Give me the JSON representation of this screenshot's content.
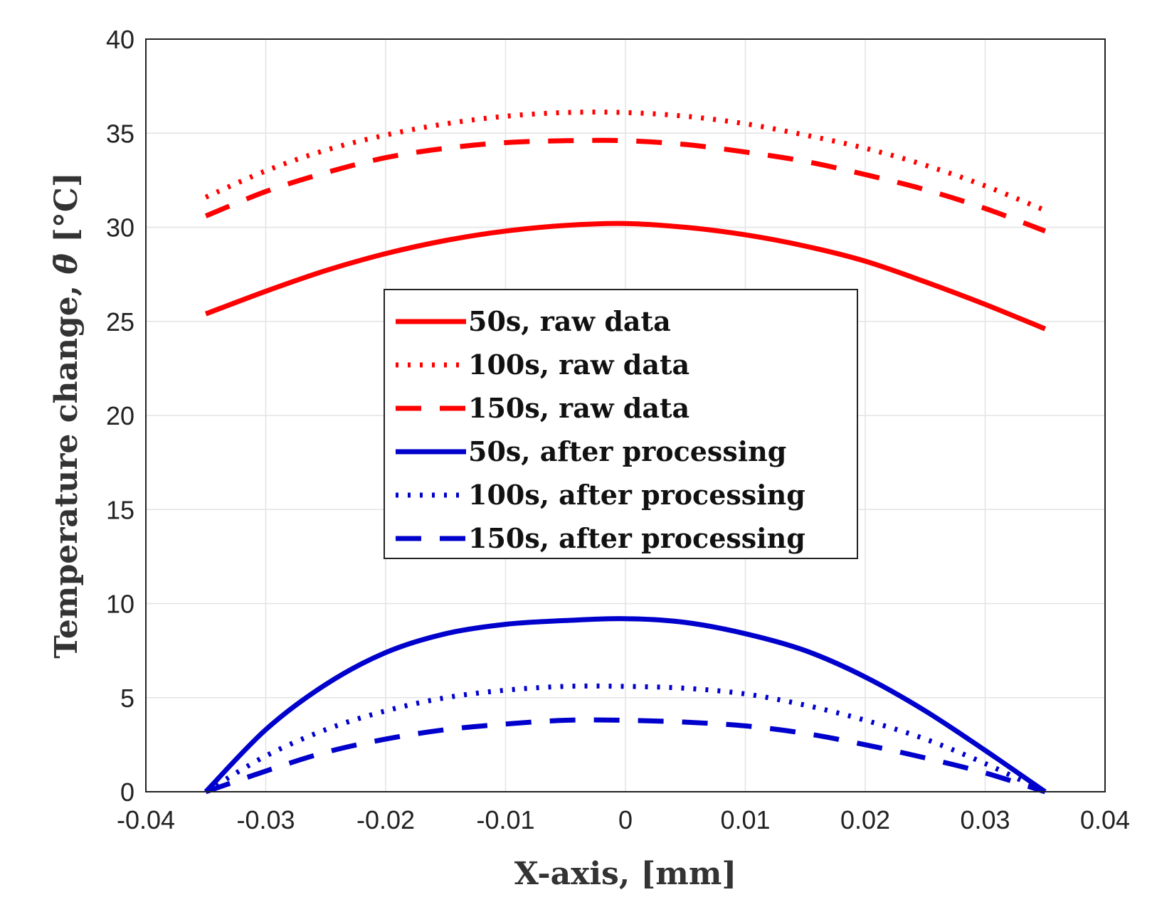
{
  "chart_data": {
    "type": "line",
    "title": "",
    "xlabel": "X-axis, [mm]",
    "ylabel_main": "Temperature change, ",
    "ylabel_symbol": "θ̄",
    "ylabel_unit": " [°C]",
    "xlim": [
      -0.04,
      0.04
    ],
    "ylim": [
      0,
      40
    ],
    "grid": true,
    "legend_position": "center",
    "x_ticks": [
      -0.04,
      -0.03,
      -0.02,
      -0.01,
      0,
      0.01,
      0.02,
      0.03,
      0.04
    ],
    "x_tick_labels": [
      "-0.04",
      "-0.03",
      "-0.02",
      "-0.01",
      "0",
      "0.01",
      "0.02",
      "0.03",
      "0.04"
    ],
    "y_ticks": [
      0,
      5,
      10,
      15,
      20,
      25,
      30,
      35,
      40
    ],
    "y_tick_labels": [
      "0",
      "5",
      "10",
      "15",
      "20",
      "25",
      "30",
      "35",
      "40"
    ],
    "x": [
      -0.035,
      -0.03,
      -0.025,
      -0.02,
      -0.015,
      -0.01,
      -0.005,
      0,
      0.005,
      0.01,
      0.015,
      0.02,
      0.025,
      0.03,
      0.035
    ],
    "series": [
      {
        "name": "50s, raw data",
        "color": "#ff0000",
        "style": "solid",
        "values": [
          25.4,
          26.6,
          27.7,
          28.6,
          29.3,
          29.8,
          30.1,
          30.2,
          30.0,
          29.6,
          29.0,
          28.2,
          27.1,
          25.9,
          24.6
        ]
      },
      {
        "name": "100s, raw data",
        "color": "#ff0000",
        "style": "dotted",
        "values": [
          31.6,
          33.0,
          34.1,
          34.9,
          35.5,
          35.9,
          36.1,
          36.1,
          35.9,
          35.5,
          34.9,
          34.2,
          33.3,
          32.2,
          30.9
        ]
      },
      {
        "name": "150s, raw data",
        "color": "#ff0000",
        "style": "dashed",
        "values": [
          30.6,
          31.9,
          32.9,
          33.7,
          34.2,
          34.5,
          34.6,
          34.6,
          34.4,
          34.0,
          33.5,
          32.8,
          32.0,
          31.0,
          29.8
        ]
      },
      {
        "name": "50s, after processing",
        "color": "#0000cc",
        "style": "solid",
        "values": [
          0.0,
          3.3,
          5.7,
          7.4,
          8.4,
          8.9,
          9.1,
          9.2,
          9.0,
          8.4,
          7.5,
          6.1,
          4.3,
          2.2,
          0.0
        ]
      },
      {
        "name": "100s, after processing",
        "color": "#0000cc",
        "style": "dotted",
        "values": [
          0.0,
          1.9,
          3.3,
          4.3,
          5.0,
          5.4,
          5.6,
          5.6,
          5.5,
          5.2,
          4.6,
          3.8,
          2.8,
          1.5,
          0.0
        ]
      },
      {
        "name": "150s, after processing",
        "color": "#0000cc",
        "style": "dashed",
        "values": [
          0.0,
          1.1,
          2.1,
          2.8,
          3.3,
          3.6,
          3.8,
          3.8,
          3.7,
          3.5,
          3.1,
          2.5,
          1.8,
          1.0,
          0.0
        ]
      }
    ]
  }
}
